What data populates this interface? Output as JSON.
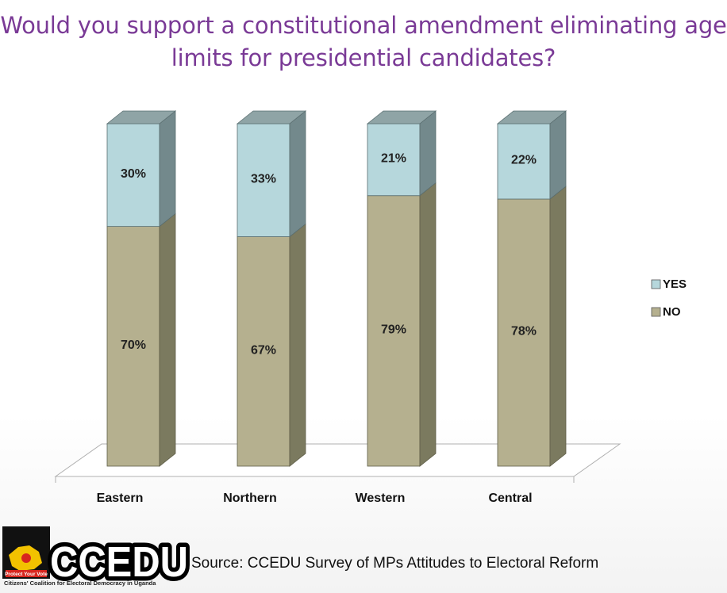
{
  "title": "Would you support a constitutional amendment eliminating age limits for presidential candidates?",
  "source": "Source: CCEDU Survey of MPs  Attitudes to Electoral Reform",
  "logo": {
    "text": "CCEDU",
    "tagline": "Citizens' Coalition for Electoral Democracy in Uganda",
    "badge_text": "Protect Your Vote"
  },
  "colors": {
    "yes": "#b6d7dc",
    "yes_side": "#73898c",
    "no": "#b5b08f",
    "no_side": "#7b7a5f",
    "title": "#7a3a96"
  },
  "chart_data": {
    "type": "bar",
    "stacked": true,
    "three_d": true,
    "categories": [
      "Eastern",
      "Northern",
      "Western",
      "Central"
    ],
    "series": [
      {
        "name": "NO",
        "values": [
          70,
          67,
          79,
          78
        ],
        "labels": [
          "70%",
          "67%",
          "79%",
          "78%"
        ]
      },
      {
        "name": "YES",
        "values": [
          30,
          33,
          21,
          22
        ],
        "labels": [
          "30%",
          "33%",
          "21%",
          "22%"
        ]
      }
    ],
    "legend": [
      "YES",
      "NO"
    ],
    "legend_position": "right",
    "ylim": [
      0,
      100
    ],
    "grid": false
  }
}
